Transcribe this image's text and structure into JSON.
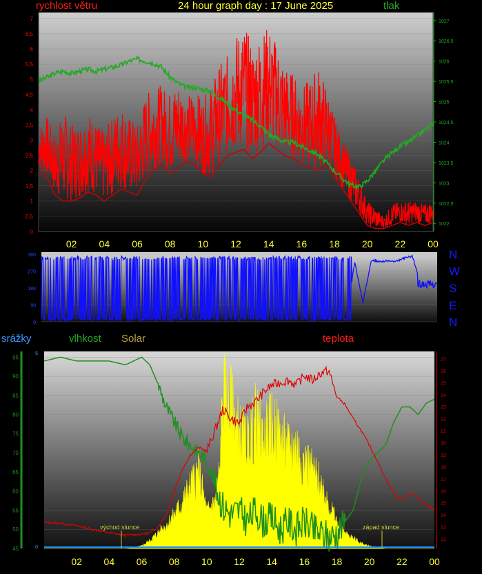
{
  "header": {
    "left": "rychlost větru",
    "center": "24 hour graph day : 17 June 2025",
    "right": "tlak"
  },
  "mid_labels": {
    "precip": "srážky",
    "humidity": "vlhkost",
    "solar": "Solar",
    "temperature": "teplota"
  },
  "directions": [
    "N",
    "W",
    "S",
    "E",
    "N"
  ],
  "annotations": {
    "sunrise": "východ slunce",
    "sunset": "západ slunce"
  },
  "colors": {
    "wind": "#ff0000",
    "pressure": "#22aa22",
    "direction": "#1010ff",
    "humidity": "#1f8f1f",
    "solar": "#ffff00",
    "temperature": "#e00000",
    "precip": "#1f8fff"
  },
  "chart_data": [
    {
      "id": "wind_pressure",
      "type": "line",
      "x_ticks": [
        "02",
        "04",
        "06",
        "08",
        "10",
        "12",
        "14",
        "16",
        "18",
        "20",
        "22",
        "00"
      ],
      "y_left_ticks": [
        "0",
        "0,5",
        "1",
        "1,5",
        "2",
        "2,5",
        "3",
        "3,5",
        "4",
        "4,5",
        "5",
        "5,5",
        "6",
        "6,5",
        "7"
      ],
      "ylim_left": [
        0,
        7.2
      ],
      "y_right_ticks": [
        "1022",
        "1022,5",
        "1023",
        "1023,5",
        "1024",
        "1024,5",
        "1025",
        "1025,5",
        "1026",
        "1026,5",
        "1027"
      ],
      "ylim_right": [
        1021.8,
        1027.2
      ],
      "xlim_hours": [
        0,
        24
      ],
      "series": [
        {
          "name": "rychlost větru",
          "axis": "left",
          "x": [
            0,
            0.5,
            1,
            1.5,
            2,
            2.5,
            3,
            3.5,
            4,
            4.5,
            5,
            5.5,
            6,
            6.5,
            7,
            7.5,
            8,
            8.5,
            9,
            9.5,
            10,
            10.5,
            11,
            11.5,
            12,
            12.5,
            13,
            13.5,
            14,
            14.5,
            15,
            15.5,
            16,
            16.5,
            17,
            17.5,
            18,
            18.5,
            19,
            19.5,
            20,
            20.5,
            21,
            21.5,
            22,
            22.5,
            23,
            23.5,
            24
          ],
          "avg": [
            2.0,
            1.8,
            1.2,
            1.0,
            1.0,
            1.1,
            1.3,
            1.2,
            1.0,
            1.2,
            1.4,
            1.3,
            1.2,
            1.7,
            2.0,
            2.2,
            1.9,
            2.1,
            2.3,
            2.2,
            1.9,
            1.8,
            2.2,
            2.5,
            2.6,
            2.7,
            2.4,
            2.6,
            2.9,
            2.7,
            2.5,
            2.4,
            2.2,
            2.1,
            2.0,
            2.2,
            1.8,
            1.4,
            1.0,
            0.6,
            0.2,
            0.1,
            0.1,
            0.2,
            0.3,
            0.2,
            0.3,
            0.2,
            0.3
          ],
          "gust": [
            3.5,
            3.8,
            3.2,
            4.0,
            3.5,
            3.6,
            4.0,
            3.6,
            3.3,
            3.8,
            4.2,
            3.8,
            3.5,
            4.5,
            4.8,
            4.8,
            4.6,
            5.0,
            4.5,
            4.6,
            4.4,
            4.8,
            5.5,
            5.8,
            6.5,
            6.8,
            6.2,
            6.5,
            6.8,
            6.2,
            5.5,
            5.2,
            4.8,
            5.0,
            5.5,
            4.8,
            3.8,
            3.0,
            2.5,
            1.8,
            1.0,
            0.8,
            0.5,
            0.9,
            1.0,
            1.0,
            1.0,
            0.9,
            1.0
          ]
        },
        {
          "name": "tlak",
          "axis": "right",
          "x": [
            0,
            0.5,
            1,
            1.5,
            2,
            2.5,
            3,
            3.5,
            4,
            4.5,
            5,
            5.5,
            6,
            6.5,
            7,
            7.5,
            8,
            8.5,
            9,
            9.5,
            10,
            10.5,
            11,
            11.5,
            12,
            12.5,
            13,
            13.5,
            14,
            14.5,
            15,
            15.5,
            16,
            16.5,
            17,
            17.5,
            18,
            18.5,
            19,
            19.5,
            20,
            20.5,
            21,
            21.5,
            22,
            22.5,
            23,
            23.5,
            24
          ],
          "y": [
            1025.5,
            1025.6,
            1025.7,
            1025.75,
            1025.7,
            1025.75,
            1025.8,
            1025.75,
            1025.8,
            1025.85,
            1025.9,
            1026.0,
            1026.05,
            1026.0,
            1025.95,
            1025.85,
            1025.6,
            1025.45,
            1025.35,
            1025.35,
            1025.3,
            1025.25,
            1025.1,
            1024.95,
            1024.8,
            1024.65,
            1024.55,
            1024.4,
            1024.2,
            1024.1,
            1024.0,
            1024.0,
            1023.9,
            1023.8,
            1023.7,
            1023.5,
            1023.3,
            1023.1,
            1022.95,
            1022.9,
            1023.05,
            1023.3,
            1023.55,
            1023.75,
            1023.9,
            1024.0,
            1024.15,
            1024.3,
            1024.45
          ]
        }
      ]
    },
    {
      "id": "wind_direction",
      "type": "line",
      "y_ticks": [
        "0",
        "90",
        "180",
        "270",
        "360"
      ],
      "ylim": [
        0,
        360
      ],
      "xlim_hours": [
        0,
        24
      ],
      "series": [
        {
          "name": "direction",
          "pattern": [
            [
              0,
              360
            ],
            [
              0.5,
              10
            ],
            [
              1,
              350
            ],
            [
              1.5,
              20
            ],
            [
              2,
              360
            ],
            [
              2.5,
              5
            ],
            [
              3,
              340
            ],
            [
              3.5,
              15
            ],
            [
              4,
              0
            ],
            [
              4.5,
              5
            ],
            [
              5,
              10
            ],
            [
              5.5,
              15
            ],
            [
              6,
              20
            ],
            [
              6.5,
              350
            ],
            [
              7,
              10
            ],
            [
              7.5,
              355
            ],
            [
              8,
              5
            ],
            [
              8.5,
              10
            ],
            [
              9,
              350
            ],
            [
              9.5,
              15
            ],
            [
              10,
              355
            ],
            [
              10.5,
              20
            ],
            [
              11,
              350
            ],
            [
              11.5,
              10
            ],
            [
              12,
              355
            ],
            [
              12.5,
              15
            ],
            [
              13,
              345
            ],
            [
              13.5,
              10
            ],
            [
              14,
              355
            ],
            [
              14.5,
              20
            ],
            [
              15,
              350
            ],
            [
              15.5,
              10
            ],
            [
              16,
              345
            ],
            [
              16.5,
              20
            ],
            [
              17,
              340
            ],
            [
              17.5,
              15
            ],
            [
              18,
              340
            ],
            [
              18.5,
              20
            ],
            [
              19,
              320
            ],
            [
              19.5,
              100
            ],
            [
              20,
              330
            ],
            [
              20.5,
              320
            ],
            [
              21,
              325
            ],
            [
              21.5,
              320
            ],
            [
              22,
              340
            ],
            [
              22.5,
              350
            ],
            [
              23,
              200
            ],
            [
              23.5,
              210
            ],
            [
              24,
              215
            ]
          ]
        }
      ]
    },
    {
      "id": "humidity_solar_temp",
      "type": "line",
      "x_ticks": [
        "02",
        "04",
        "06",
        "08",
        "10",
        "12",
        "14",
        "16",
        "18",
        "20",
        "22",
        "00"
      ],
      "y_left_ticks": [
        "45",
        "50",
        "55",
        "60",
        "65",
        "70",
        "75",
        "80",
        "85",
        "90",
        "95"
      ],
      "ylim_left": [
        45,
        96.5
      ],
      "y_right_ticks": [
        "12",
        "13",
        "14",
        "15",
        "16",
        "17",
        "18",
        "19",
        "20",
        "21",
        "22",
        "23",
        "24",
        "25",
        "26",
        "27"
      ],
      "ylim_right": [
        11.2,
        27.6
      ],
      "xlim_hours": [
        0,
        24
      ],
      "series": [
        {
          "name": "vlhkost",
          "axis": "left",
          "x": [
            0,
            1,
            2,
            3,
            4,
            5,
            6,
            6.5,
            7,
            7.5,
            8,
            8.5,
            9,
            9.5,
            10,
            10.5,
            11,
            11.5,
            12,
            12.5,
            13,
            13.5,
            14,
            14.5,
            15,
            15.5,
            16,
            16.5,
            17,
            17.5,
            18,
            18.5,
            19,
            19.5,
            20,
            20.5,
            21,
            21.5,
            22,
            22.5,
            23,
            23.5,
            24
          ],
          "y": [
            94,
            95,
            94,
            94,
            94,
            93,
            95,
            93,
            88,
            82,
            78,
            74,
            72,
            70,
            68,
            62,
            56,
            54,
            55,
            52,
            55,
            52,
            53,
            50,
            52,
            50,
            52,
            50,
            49,
            48,
            49,
            52,
            55,
            63,
            68,
            70,
            72,
            78,
            82,
            82,
            80,
            83,
            84
          ]
        },
        {
          "name": "Solar",
          "axis": "none",
          "x": [
            0,
            4,
            5,
            5.5,
            6,
            6.5,
            7,
            7.5,
            8,
            8.5,
            9,
            9.5,
            10,
            10.5,
            10.8,
            11,
            11.5,
            12,
            12.5,
            13,
            13.5,
            14,
            14.5,
            15,
            15.5,
            16,
            16.5,
            17,
            17.5,
            18,
            18.5,
            19,
            19.5,
            20,
            20.5,
            21,
            24
          ],
          "y": [
            0,
            0,
            0,
            0.3,
            1,
            3,
            6,
            9,
            13,
            18,
            24,
            30,
            14,
            18,
            30,
            60,
            55,
            45,
            40,
            50,
            42,
            48,
            43,
            38,
            40,
            34,
            30,
            25,
            18,
            10,
            6,
            4,
            2,
            1,
            0.5,
            0,
            0
          ]
        },
        {
          "name": "teplota",
          "axis": "right",
          "x": [
            0,
            1,
            2,
            3,
            4,
            5,
            6,
            6.5,
            7,
            7.5,
            8,
            8.5,
            9,
            9.5,
            10,
            10.5,
            11,
            11.5,
            12,
            12.5,
            13,
            13.5,
            14,
            14.5,
            15,
            15.5,
            16,
            16.5,
            17,
            17.5,
            18,
            18.5,
            19,
            19.5,
            20,
            20.5,
            21,
            21.5,
            22,
            22.5,
            23,
            23.5,
            24
          ],
          "y": [
            13.4,
            13.3,
            13.1,
            12.8,
            12.5,
            12.3,
            12.4,
            12.5,
            13.0,
            14.0,
            16.0,
            17.8,
            19.0,
            19.6,
            19.3,
            21.0,
            22.8,
            22.0,
            21.6,
            23.0,
            23.4,
            24.2,
            24.8,
            25.0,
            25.2,
            24.8,
            25.6,
            25.2,
            25.8,
            26.0,
            23.8,
            23.2,
            22.0,
            21.0,
            19.8,
            18.5,
            17.0,
            15.8,
            15.2,
            15.8,
            15.4,
            14.8,
            14.4
          ]
        },
        {
          "name": "srážky",
          "axis": "left2",
          "x": [
            0,
            24
          ],
          "y": [
            0,
            0
          ]
        }
      ],
      "precip_ticks": [
        "0",
        "5"
      ]
    }
  ]
}
